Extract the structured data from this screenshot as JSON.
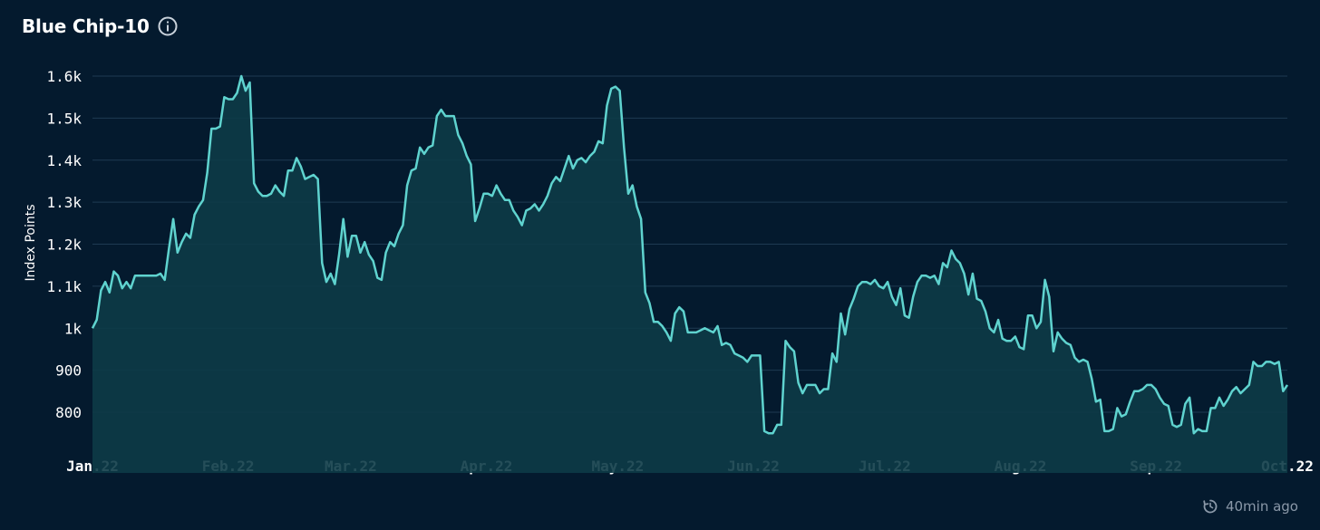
{
  "header": {
    "title": "Blue Chip-10",
    "info_icon": "info-icon"
  },
  "footer": {
    "updated_text": "40min ago",
    "refresh_icon": "refresh-clock-icon"
  },
  "colors": {
    "background": "#041a2e",
    "line": "#5fd3cf",
    "area_fill": "#0d3b47",
    "grid": "#1e3a52"
  },
  "chart_data": {
    "type": "area",
    "title": "Blue Chip-10",
    "ylabel": "Index Points",
    "xlabel": "",
    "ylim": [
      700,
      1620
    ],
    "yticks": [
      800,
      900,
      1000,
      1100,
      1200,
      1300,
      1400,
      1500,
      1600
    ],
    "ytick_labels": [
      "800",
      "900",
      "1k",
      "1.1k",
      "1.2k",
      "1.3k",
      "1.4k",
      "1.5k",
      "1.6k"
    ],
    "xticks": [
      "Jan.22",
      "Feb.22",
      "Mar.22",
      "Apr.22",
      "May.22",
      "Jun.22",
      "Jul.22",
      "Aug.22",
      "Sep.22",
      "Oct.22"
    ],
    "grid": true,
    "x_start": "2022-01-01",
    "x_end": "2022-10-01",
    "series": [
      {
        "values": [
          1000,
          1020,
          1090,
          1110,
          1085,
          1135,
          1125,
          1095,
          1110,
          1095,
          1125,
          1125,
          1125,
          1125,
          1125,
          1125,
          1130,
          1115,
          1190,
          1260,
          1180,
          1205,
          1225,
          1215,
          1270,
          1290,
          1305,
          1370,
          1475,
          1475,
          1480,
          1550,
          1545,
          1545,
          1560,
          1600,
          1565,
          1585,
          1345,
          1325,
          1315,
          1315,
          1320,
          1340,
          1325,
          1315,
          1375,
          1375,
          1405,
          1385,
          1355,
          1360,
          1365,
          1355,
          1155,
          1110,
          1130,
          1105,
          1175,
          1260,
          1170,
          1220,
          1220,
          1180,
          1205,
          1175,
          1160,
          1120,
          1115,
          1180,
          1205,
          1195,
          1225,
          1245,
          1340,
          1375,
          1380,
          1430,
          1415,
          1430,
          1435,
          1505,
          1520,
          1505,
          1505,
          1505,
          1460,
          1440,
          1410,
          1390,
          1255,
          1285,
          1320,
          1320,
          1315,
          1340,
          1320,
          1305,
          1305,
          1280,
          1265,
          1245,
          1280,
          1285,
          1295,
          1280,
          1295,
          1315,
          1345,
          1360,
          1350,
          1380,
          1410,
          1380,
          1400,
          1405,
          1395,
          1410,
          1420,
          1445,
          1440,
          1530,
          1570,
          1575,
          1565,
          1430,
          1320,
          1340,
          1290,
          1260,
          1085,
          1060,
          1015,
          1015,
          1005,
          990,
          970,
          1035,
          1050,
          1040,
          990,
          990,
          990,
          995,
          1000,
          995,
          990,
          1005,
          960,
          965,
          960,
          940,
          935,
          930,
          920,
          935,
          935,
          935,
          755,
          750,
          750,
          770,
          770,
          970,
          955,
          945,
          870,
          845,
          865,
          865,
          865,
          845,
          855,
          855,
          940,
          920,
          1035,
          985,
          1045,
          1070,
          1100,
          1110,
          1110,
          1105,
          1115,
          1100,
          1095,
          1110,
          1075,
          1055,
          1095,
          1030,
          1025,
          1075,
          1110,
          1125,
          1125,
          1120,
          1125,
          1105,
          1155,
          1145,
          1185,
          1165,
          1155,
          1130,
          1080,
          1130,
          1070,
          1065,
          1040,
          1000,
          990,
          1020,
          975,
          970,
          970,
          980,
          955,
          950,
          1030,
          1030,
          1000,
          1015,
          1115,
          1075,
          945,
          990,
          975,
          965,
          960,
          930,
          920,
          925,
          920,
          880,
          825,
          830,
          755,
          755,
          760,
          810,
          790,
          795,
          825,
          850,
          850,
          855,
          865,
          865,
          855,
          835,
          820,
          815,
          770,
          765,
          770,
          820,
          835,
          750,
          760,
          755,
          755,
          810,
          810,
          835,
          815,
          830,
          850,
          860,
          845,
          855,
          865,
          920,
          910,
          910,
          920,
          920,
          915,
          920,
          850,
          865
        ]
      }
    ]
  }
}
